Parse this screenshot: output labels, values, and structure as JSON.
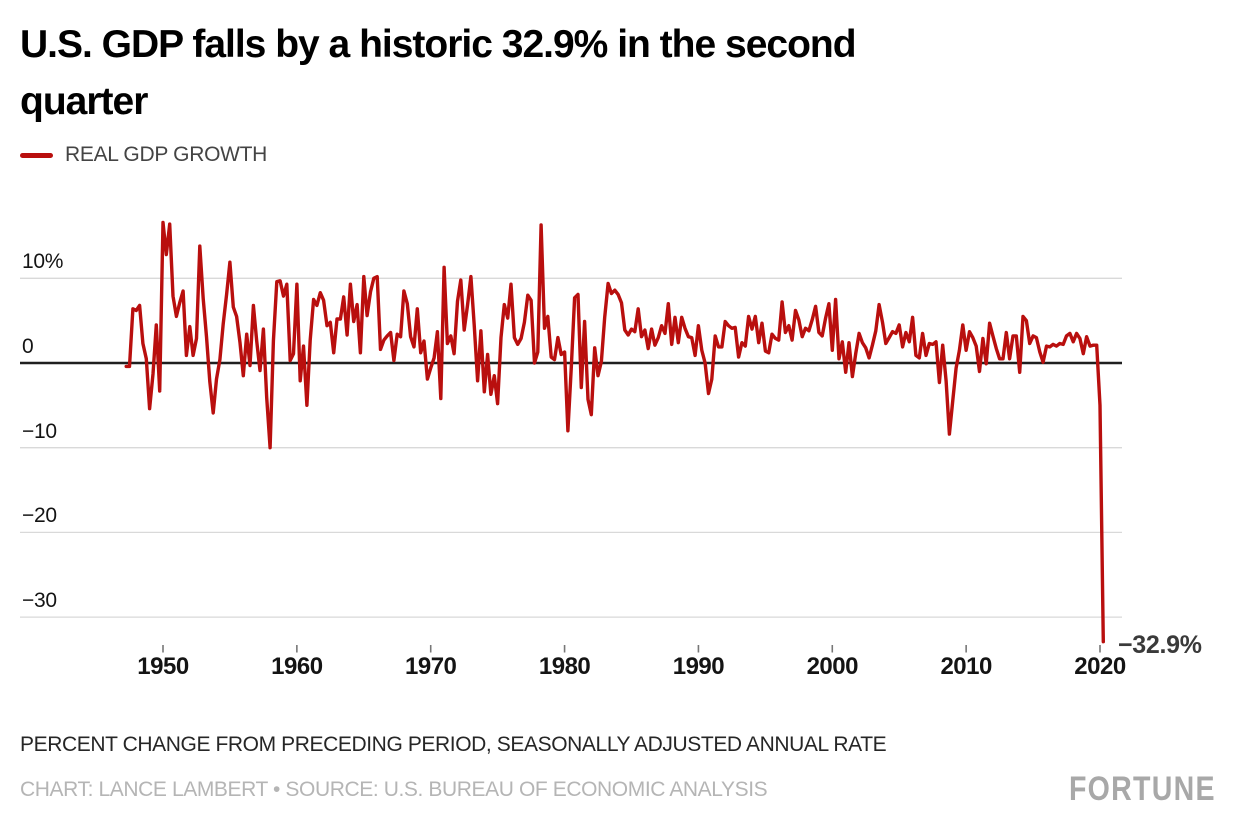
{
  "header": {
    "title": "U.S. GDP falls by a historic 32.9% in the second quarter",
    "title_lines": [
      "U.S. GDP falls by a historic 32.9% in the second",
      "quarter"
    ],
    "legend": {
      "label": "REAL GDP GROWTH",
      "color": "#b90f0e"
    }
  },
  "chart_data": {
    "type": "line",
    "title": "U.S. GDP falls by a historic 32.9% in the second quarter",
    "series_name": "REAL GDP GROWTH",
    "x_start": 1947.25,
    "x_step": 0.25,
    "x_unit": "quarter (start-of-quarter decimal year)",
    "ylabel": "Percent change from preceding period, seasonally adjusted annual rate",
    "ylim": [
      -34.5,
      17.5
    ],
    "xlim": [
      1946.5,
      2021.5
    ],
    "grid": "horizontal",
    "legend_position": "top-left",
    "line_color": "#b90f0e",
    "grid_color": "#d9d9d9",
    "zero_line_color": "#1f1f1f",
    "x_axis": {
      "ticks": [
        1950,
        1960,
        1970,
        1980,
        1990,
        2000,
        2010,
        2020
      ]
    },
    "y_axis": {
      "ticks": [
        {
          "v": 10,
          "label": "10%"
        },
        {
          "v": 0,
          "label": "0"
        },
        {
          "v": -10,
          "label": "−10"
        },
        {
          "v": -20,
          "label": "−20"
        },
        {
          "v": -30,
          "label": "−30"
        }
      ]
    },
    "annotation": {
      "text": "−32.9%",
      "x": 2020.25,
      "y": -32.9
    },
    "values": [
      -0.4,
      -0.4,
      6.4,
      6.2,
      6.8,
      2.3,
      0.5,
      -5.4,
      -1.3,
      4.5,
      -3.3,
      16.6,
      12.8,
      16.4,
      7.9,
      5.5,
      7.1,
      8.5,
      0.9,
      4.3,
      0.9,
      2.9,
      13.8,
      7.6,
      3.1,
      -2.2,
      -5.9,
      -1.9,
      0.4,
      4.6,
      8.1,
      11.9,
      6.6,
      5.5,
      2.4,
      -1.5,
      3.4,
      -0.3,
      6.8,
      2.6,
      -0.9,
      4.0,
      -4.1,
      -10.0,
      2.6,
      9.6,
      9.7,
      7.9,
      9.3,
      0.3,
      1.1,
      9.3,
      -2.1,
      2.0,
      -5.0,
      2.7,
      7.5,
      6.8,
      8.3,
      7.4,
      4.4,
      4.8,
      1.2,
      5.2,
      5.2,
      7.8,
      3.3,
      9.3,
      4.9,
      6.9,
      1.2,
      10.2,
      5.6,
      8.4,
      10.0,
      10.2,
      1.6,
      2.7,
      3.2,
      3.6,
      0.3,
      3.4,
      3.1,
      8.5,
      7.0,
      3.1,
      1.9,
      6.4,
      1.2,
      2.6,
      -1.9,
      -0.6,
      0.6,
      3.7,
      -4.2,
      11.3,
      2.3,
      3.2,
      1.1,
      7.3,
      9.8,
      3.9,
      6.8,
      10.2,
      4.5,
      -2.1,
      3.8,
      -3.4,
      1.0,
      -3.7,
      -1.5,
      -4.8,
      3.0,
      6.9,
      5.3,
      9.3,
      3.0,
      2.2,
      2.9,
      4.8,
      8.0,
      7.4,
      0.0,
      1.3,
      16.3,
      4.1,
      5.5,
      0.7,
      0.4,
      3.0,
      1.0,
      1.3,
      -8.0,
      -0.5,
      7.7,
      8.1,
      -2.9,
      4.9,
      -4.3,
      -6.1,
      1.8,
      -1.5,
      0.2,
      5.4,
      9.4,
      8.2,
      8.6,
      8.1,
      7.1,
      3.9,
      3.3,
      4.0,
      3.7,
      6.4,
      3.1,
      3.9,
      1.7,
      4.0,
      2.1,
      3.0,
      4.4,
      3.5,
      7.0,
      2.2,
      5.4,
      2.4,
      5.4,
      4.1,
      3.1,
      3.0,
      0.9,
      4.4,
      1.5,
      0.0,
      -3.6,
      -1.9,
      3.2,
      1.9,
      1.9,
      4.9,
      4.4,
      4.1,
      4.2,
      0.7,
      2.4,
      2.0,
      5.5,
      4.0,
      5.5,
      2.4,
      4.7,
      1.4,
      1.2,
      3.4,
      2.9,
      2.7,
      7.2,
      3.6,
      4.4,
      2.7,
      6.2,
      5.1,
      3.1,
      4.1,
      3.8,
      5.1,
      6.7,
      3.6,
      3.2,
      5.3,
      7.0,
      1.5,
      7.5,
      0.5,
      2.5,
      -1.1,
      2.4,
      -1.6,
      1.1,
      3.5,
      2.4,
      1.8,
      0.6,
      2.1,
      3.8,
      6.9,
      4.8,
      2.3,
      3.0,
      3.7,
      3.5,
      4.5,
      1.9,
      3.6,
      2.5,
      5.4,
      0.9,
      0.6,
      3.5,
      0.9,
      2.3,
      2.2,
      2.5,
      -2.3,
      2.1,
      -2.1,
      -8.4,
      -4.4,
      -0.6,
      1.5,
      4.5,
      1.5,
      3.7,
      3.0,
      2.0,
      -1.0,
      2.9,
      -0.1,
      4.7,
      3.2,
      1.7,
      0.5,
      0.5,
      3.6,
      0.5,
      3.2,
      3.2,
      -1.1,
      5.5,
      5.0,
      2.3,
      3.2,
      3.0,
      1.3,
      0.1,
      2.0,
      1.9,
      2.2,
      2.0,
      2.3,
      2.2,
      3.2,
      3.5,
      2.5,
      3.5,
      2.9,
      1.1,
      3.1,
      2.0,
      2.1,
      2.1,
      -5.0,
      -32.9
    ]
  },
  "footer": {
    "note": "PERCENT CHANGE FROM PRECEDING PERIOD, SEASONALLY ADJUSTED ANNUAL RATE",
    "credit": "CHART: LANCE LAMBERT • SOURCE: U.S. BUREAU OF ECONOMIC ANALYSIS",
    "logo": "FORTUNE"
  }
}
